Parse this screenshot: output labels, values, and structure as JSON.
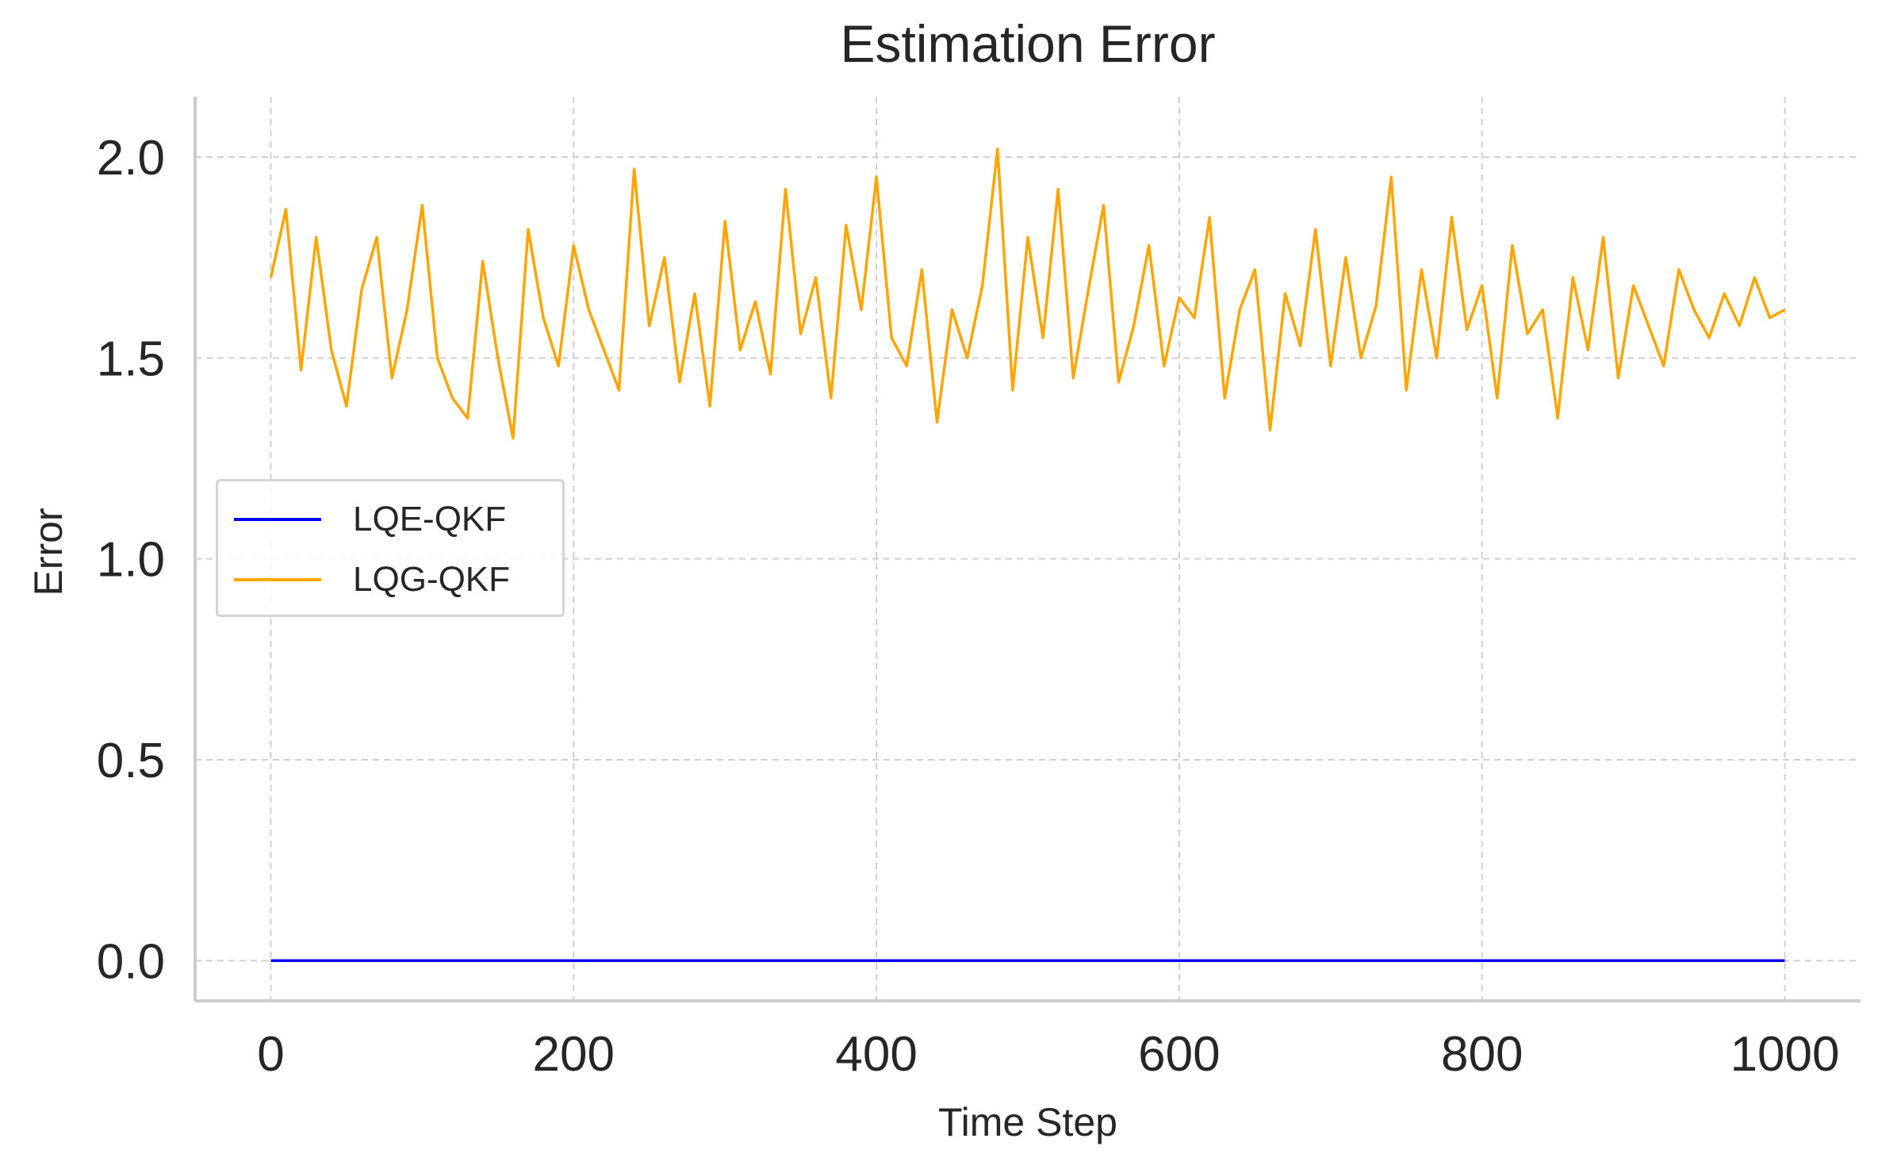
{
  "chart_data": {
    "type": "line",
    "title": "Estimation Error",
    "xlabel": "Time Step",
    "ylabel": "Error",
    "xlim": [
      -50,
      1050
    ],
    "ylim": [
      -0.1,
      2.15
    ],
    "x_ticks": [
      0,
      200,
      400,
      600,
      800,
      1000
    ],
    "x_tick_labels": [
      "0",
      "200",
      "400",
      "600",
      "800",
      "1000"
    ],
    "y_ticks": [
      0.0,
      0.5,
      1.0,
      1.5,
      2.0
    ],
    "y_tick_labels": [
      "0.0",
      "0.5",
      "1.0",
      "1.5",
      "2.0"
    ],
    "grid": true,
    "legend_position": "center-left",
    "series": [
      {
        "name": "LQE-QKF",
        "color": "#0000ff",
        "x": [
          0,
          1000
        ],
        "y": [
          0.0,
          0.0
        ]
      },
      {
        "name": "LQG-QKF",
        "color": "#ffa500",
        "x_start": 0,
        "x_step": 10,
        "y": [
          1.7,
          1.87,
          1.47,
          1.8,
          1.52,
          1.38,
          1.67,
          1.8,
          1.45,
          1.62,
          1.88,
          1.5,
          1.4,
          1.35,
          1.74,
          1.5,
          1.3,
          1.82,
          1.6,
          1.48,
          1.78,
          1.62,
          1.52,
          1.42,
          1.97,
          1.58,
          1.75,
          1.44,
          1.66,
          1.38,
          1.84,
          1.52,
          1.64,
          1.46,
          1.92,
          1.56,
          1.7,
          1.4,
          1.83,
          1.62,
          1.95,
          1.55,
          1.48,
          1.72,
          1.34,
          1.62,
          1.5,
          1.68,
          2.02,
          1.42,
          1.8,
          1.55,
          1.92,
          1.45,
          1.67,
          1.88,
          1.44,
          1.58,
          1.78,
          1.48,
          1.65,
          1.6,
          1.85,
          1.4,
          1.62,
          1.72,
          1.32,
          1.66,
          1.53,
          1.82,
          1.48,
          1.75,
          1.5,
          1.63,
          1.95,
          1.42,
          1.72,
          1.5,
          1.85,
          1.57,
          1.68,
          1.4,
          1.78,
          1.56,
          1.62,
          1.35,
          1.7,
          1.52,
          1.8,
          1.45,
          1.68,
          1.58,
          1.48,
          1.72,
          1.62,
          1.55,
          1.66,
          1.58,
          1.7,
          1.6,
          1.62
        ],
        "note_y_range": [
          1.19,
          2.05
        ]
      }
    ]
  }
}
